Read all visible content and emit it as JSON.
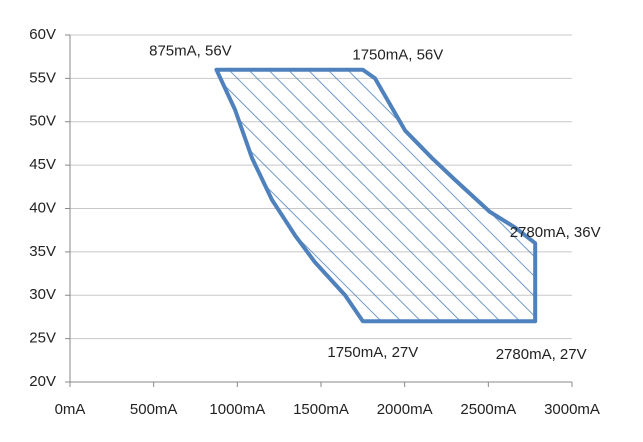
{
  "chart_data": {
    "type": "area",
    "series": [
      {
        "color": "#4f81bd",
        "x": [
          875,
          1750,
          1823,
          2002,
          2164,
          2301,
          2510,
          2660,
          2780,
          2780,
          1750,
          1644,
          1464,
          1345,
          1207,
          1088,
          986,
          875
        ],
        "values": [
          56,
          56,
          55,
          49,
          45.8,
          43.3,
          39.6,
          37.8,
          36,
          27,
          27,
          30,
          33.8,
          36.9,
          41,
          45.8,
          51.4,
          56
        ]
      }
    ],
    "hatch": true,
    "xlim": [
      0,
      3000
    ],
    "xticks": [
      {
        "value": 0,
        "label": "0mA"
      },
      {
        "value": 500,
        "label": "500mA"
      },
      {
        "value": 1000,
        "label": "1000mA"
      },
      {
        "value": 1500,
        "label": "1500mA"
      },
      {
        "value": 2000,
        "label": "2000mA"
      },
      {
        "value": 2500,
        "label": "2500mA"
      },
      {
        "value": 3000,
        "label": "3000mA"
      }
    ],
    "ylim": [
      20,
      60
    ],
    "yticks": [
      {
        "value": 20,
        "label": "20V"
      },
      {
        "value": 25,
        "label": "25V"
      },
      {
        "value": 30,
        "label": "30V"
      },
      {
        "value": 35,
        "label": "35V"
      },
      {
        "value": 40,
        "label": "40V"
      },
      {
        "value": 45,
        "label": "45V"
      },
      {
        "value": 50,
        "label": "50V"
      },
      {
        "value": 55,
        "label": "55V"
      },
      {
        "value": 60,
        "label": "60V"
      }
    ],
    "grid": true,
    "annotations": [
      {
        "text": "875mA, 56V",
        "x": 875,
        "y": 56
      },
      {
        "text": "1750mA, 56V",
        "x": 1750,
        "y": 56
      },
      {
        "text": "2780mA, 36V",
        "x": 2780,
        "y": 36
      },
      {
        "text": "1750mA, 27V",
        "x": 1750,
        "y": 27
      },
      {
        "text": "2780mA, 27V",
        "x": 2780,
        "y": 27
      }
    ]
  }
}
